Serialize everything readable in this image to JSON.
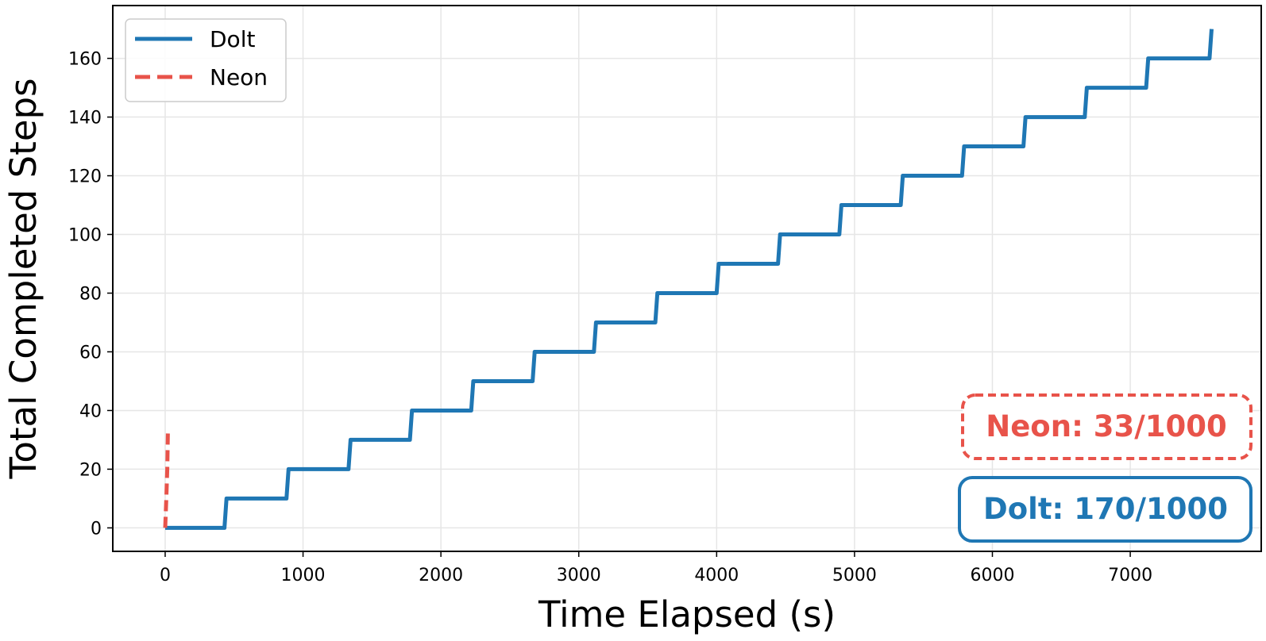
{
  "chart_data": {
    "type": "line",
    "title": "",
    "xlabel": "Time Elapsed (s)",
    "ylabel": "Total Completed Steps",
    "xlim": [
      -380,
      7950
    ],
    "ylim": [
      -8,
      178
    ],
    "xticks": [
      0,
      1000,
      2000,
      3000,
      4000,
      5000,
      6000,
      7000
    ],
    "yticks": [
      0,
      20,
      40,
      60,
      80,
      100,
      120,
      140,
      160
    ],
    "grid": true,
    "legend_position": "upper-left",
    "series": [
      {
        "name": "Dolt",
        "color": "#1f77b4",
        "style": "solid",
        "points": [
          [
            0,
            0
          ],
          [
            430,
            0
          ],
          [
            445,
            10
          ],
          [
            880,
            10
          ],
          [
            895,
            20
          ],
          [
            1330,
            20
          ],
          [
            1345,
            30
          ],
          [
            1775,
            30
          ],
          [
            1790,
            40
          ],
          [
            2220,
            40
          ],
          [
            2235,
            50
          ],
          [
            2665,
            50
          ],
          [
            2680,
            60
          ],
          [
            3110,
            60
          ],
          [
            3125,
            70
          ],
          [
            3555,
            70
          ],
          [
            3570,
            80
          ],
          [
            4000,
            80
          ],
          [
            4015,
            90
          ],
          [
            4445,
            90
          ],
          [
            4460,
            100
          ],
          [
            4890,
            100
          ],
          [
            4905,
            110
          ],
          [
            5335,
            110
          ],
          [
            5350,
            120
          ],
          [
            5780,
            120
          ],
          [
            5795,
            130
          ],
          [
            6225,
            130
          ],
          [
            6240,
            140
          ],
          [
            6670,
            140
          ],
          [
            6685,
            150
          ],
          [
            7115,
            150
          ],
          [
            7130,
            160
          ],
          [
            7575,
            160
          ],
          [
            7590,
            170
          ]
        ]
      },
      {
        "name": "Neon",
        "color": "#e8534a",
        "style": "dashed",
        "points": [
          [
            0,
            0
          ],
          [
            8,
            10
          ],
          [
            15,
            20
          ],
          [
            20,
            33
          ]
        ]
      }
    ],
    "annotations": [
      {
        "name": "neon-annotation",
        "text": "Neon: 33/1000",
        "color": "#e8534a",
        "border": "dashed"
      },
      {
        "name": "dolt-annotation",
        "text": "Dolt: 170/1000",
        "color": "#1f77b4",
        "border": "solid"
      }
    ]
  }
}
